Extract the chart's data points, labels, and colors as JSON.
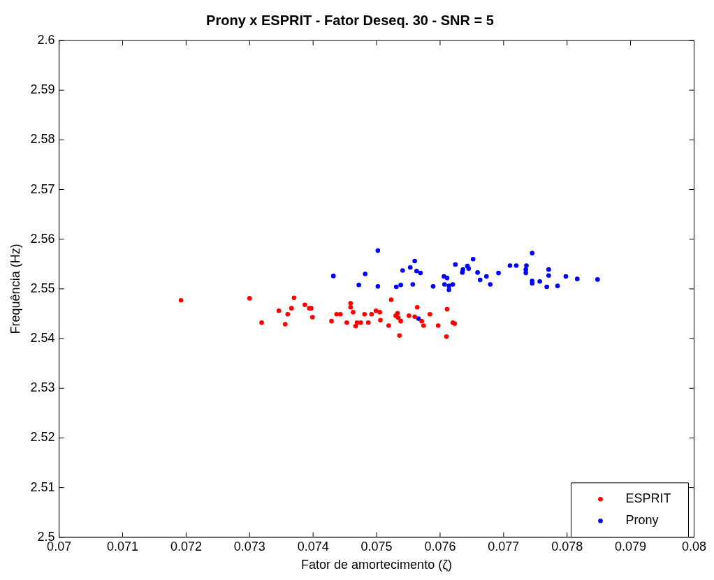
{
  "chart_data": {
    "type": "scatter",
    "title": "Prony x ESPRIT - Fator Deseq. 30 - SNR = 5",
    "xlabel": "Fator de amortecimento (ζ)",
    "ylabel": "Frequência (Hz)",
    "xlim": [
      0.07,
      0.08
    ],
    "xticks": [
      0.07,
      0.071,
      0.072,
      0.073,
      0.074,
      0.075,
      0.076,
      0.077,
      0.078,
      0.079,
      0.08
    ],
    "ylim": [
      2.5,
      2.6
    ],
    "yticks": [
      2.5,
      2.51,
      2.52,
      2.53,
      2.54,
      2.55,
      2.56,
      2.57,
      2.58,
      2.59,
      2.6
    ],
    "grid": false,
    "legend": "bottom right",
    "marker": "circle",
    "series": [
      {
        "name": "ESPRIT",
        "color": "#ff0000",
        "x": [
          0.07192,
          0.073,
          0.07319,
          0.07346,
          0.07356,
          0.0736,
          0.07366,
          0.0737,
          0.07387,
          0.07394,
          0.07397,
          0.07399,
          0.07429,
          0.07437,
          0.07443,
          0.07453,
          0.07459,
          0.07459,
          0.07463,
          0.07467,
          0.07469,
          0.07475,
          0.07481,
          0.07487,
          0.07492,
          0.07499,
          0.07505,
          0.07506,
          0.07519,
          0.07523,
          0.0753,
          0.07533,
          0.07534,
          0.07538,
          0.07536,
          0.07551,
          0.07564,
          0.0756,
          0.07571,
          0.07574,
          0.07584,
          0.07597,
          0.07611,
          0.0761,
          0.0762,
          0.07623
        ],
        "values": [
          2.5477,
          2.5481,
          2.5432,
          2.5456,
          2.5429,
          2.5449,
          2.5461,
          2.5482,
          2.5468,
          2.5461,
          2.5461,
          2.5443,
          2.5435,
          2.5449,
          2.5449,
          2.5432,
          2.5471,
          2.5463,
          2.5453,
          2.5425,
          2.5432,
          2.5432,
          2.5449,
          2.5432,
          2.5449,
          2.5456,
          2.5453,
          2.5437,
          2.5426,
          2.5478,
          2.5446,
          2.5451,
          2.5442,
          2.5435,
          2.5406,
          2.5446,
          2.5463,
          2.5444,
          2.5435,
          2.5426,
          2.5449,
          2.5426,
          2.5459,
          2.5404,
          2.5432,
          2.543
        ]
      },
      {
        "name": "Prony",
        "color": "#0000ff",
        "x": [
          0.07432,
          0.07472,
          0.07482,
          0.07502,
          0.07502,
          0.07531,
          0.07538,
          0.07541,
          0.07553,
          0.0756,
          0.07563,
          0.07569,
          0.07557,
          0.07566,
          0.07589,
          0.07606,
          0.07611,
          0.07607,
          0.07614,
          0.07614,
          0.0762,
          0.07624,
          0.07635,
          0.07636,
          0.07643,
          0.07645,
          0.07652,
          0.07659,
          0.07663,
          0.07673,
          0.07679,
          0.07692,
          0.0771,
          0.0772,
          0.07736,
          0.07735,
          0.07735,
          0.07745,
          0.07745,
          0.07745,
          0.07757,
          0.07768,
          0.07771,
          0.07771,
          0.07785,
          0.07798,
          0.07816,
          0.07848
        ],
        "values": [
          2.5526,
          2.5508,
          2.553,
          2.5577,
          2.5505,
          2.5504,
          2.5508,
          2.5537,
          2.5543,
          2.5556,
          2.5536,
          2.5532,
          2.5509,
          2.544,
          2.5505,
          2.5525,
          2.5522,
          2.5509,
          2.5506,
          2.5498,
          2.5509,
          2.5549,
          2.5533,
          2.5539,
          2.5546,
          2.5541,
          2.556,
          2.5533,
          2.5518,
          2.5525,
          2.5509,
          2.5532,
          2.5547,
          2.5547,
          2.5547,
          2.5539,
          2.5532,
          2.5516,
          2.5511,
          2.5572,
          2.5515,
          2.5504,
          2.5527,
          2.5539,
          2.5506,
          2.5525,
          2.552,
          2.5519
        ]
      }
    ]
  }
}
